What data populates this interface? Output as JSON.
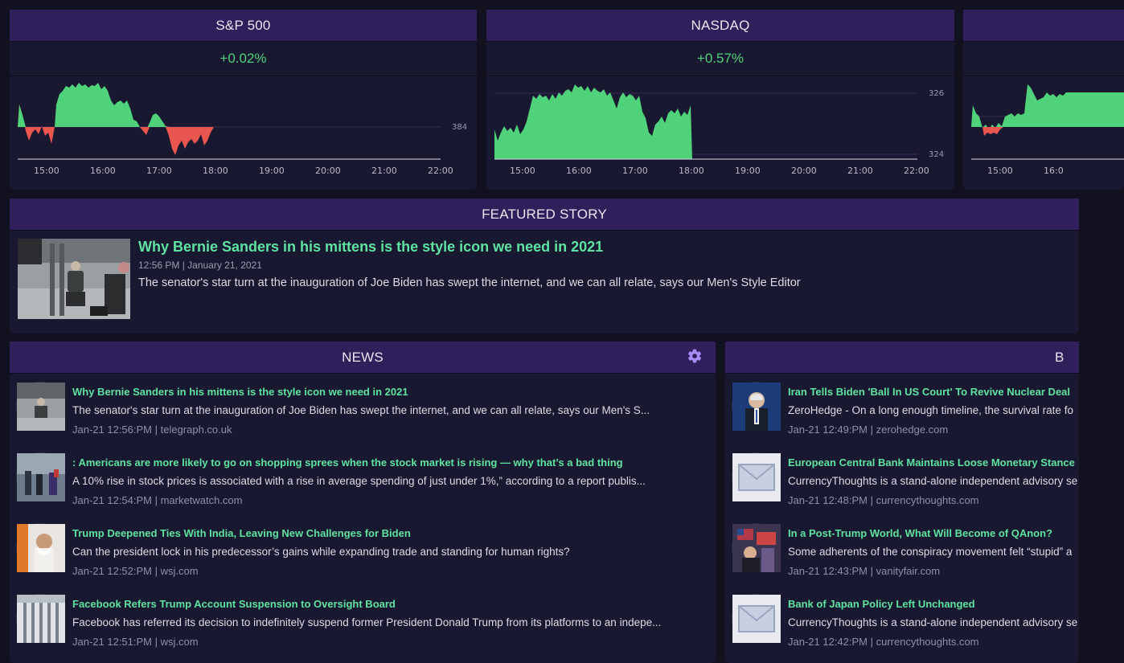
{
  "tickers": [
    {
      "title": "S&P 500",
      "change": "+0.02%",
      "price_label": "384",
      "times": [
        "15:00",
        "16:00",
        "17:00",
        "18:00",
        "19:00",
        "20:00",
        "21:00",
        "22:00"
      ]
    },
    {
      "title": "NASDAQ",
      "change": "+0.57%",
      "price_high": "326",
      "price_low": "324",
      "times": [
        "15:00",
        "16:00",
        "17:00",
        "18:00",
        "19:00",
        "20:00",
        "21:00",
        "22:00"
      ]
    },
    {
      "title": "",
      "times": [
        "15:00",
        "16:0"
      ]
    }
  ],
  "featured": {
    "header": "FEATURED STORY",
    "title": "Why Bernie Sanders in his mittens is the style icon we need in 2021",
    "meta": "12:56 PM | January 21, 2021",
    "description": "The senator's star turn at the inauguration of Joe Biden has swept the internet, and we can all relate, says our Men's Style Editor"
  },
  "news": {
    "header": "NEWS",
    "items": [
      {
        "title": "Why Bernie Sanders in his mittens is the style icon we need in 2021",
        "desc": "The senator's star turn at the inauguration of Joe Biden has swept the internet, and we can all relate, says our Men's S...",
        "meta": "Jan-21 12:56:PM | telegraph.co.uk"
      },
      {
        "title": ": Americans are more likely to go on shopping sprees when the stock market is rising — why that’s a bad thing",
        "desc": "A 10% rise in stock prices is associated with a rise in average spending of just under 1%,” according to a report publis...",
        "meta": "Jan-21 12:54:PM | marketwatch.com"
      },
      {
        "title": "Trump Deepened Ties With India, Leaving New Challenges for Biden",
        "desc": "Can the president lock in his predecessor’s gains while expanding trade and standing for human rights?",
        "meta": "Jan-21 12:52:PM | wsj.com"
      },
      {
        "title": "Facebook Refers Trump Account Suspension to Oversight Board",
        "desc": "Facebook has referred its decision to indefinitely suspend former President Donald Trump from its platforms to an indepe...",
        "meta": "Jan-21 12:51:PM | wsj.com"
      }
    ]
  },
  "news2": {
    "header": "B",
    "items": [
      {
        "title": "Iran Tells Biden 'Ball In US Court' To Revive Nuclear Deal",
        "desc": "ZeroHedge - On a long enough timeline, the survival rate fo",
        "meta": "Jan-21 12:49:PM | zerohedge.com"
      },
      {
        "title": "European Central Bank Maintains Loose Monetary Stance",
        "desc": "CurrencyThoughts is a stand-alone independent advisory se",
        "meta": "Jan-21 12:48:PM | currencythoughts.com"
      },
      {
        "title": "In a Post-Trump World, What Will Become of QAnon?",
        "desc": "Some adherents of the conspiracy movement felt “stupid” a",
        "meta": "Jan-21 12:43:PM | vanityfair.com"
      },
      {
        "title": "Bank of Japan Policy Left Unchanged",
        "desc": "CurrencyThoughts is a stand-alone independent advisory se",
        "meta": "Jan-21 12:42:PM | currencythoughts.com"
      }
    ]
  },
  "colors": {
    "header_bg": "#2f1f5a",
    "card_bg": "#181830",
    "page_bg": "#121120",
    "positive": "#4fd27a",
    "negative": "#e8564f",
    "headline": "#5ee3a0",
    "gear": "#a78bfa"
  },
  "icons": {
    "settings": "gear-icon"
  }
}
